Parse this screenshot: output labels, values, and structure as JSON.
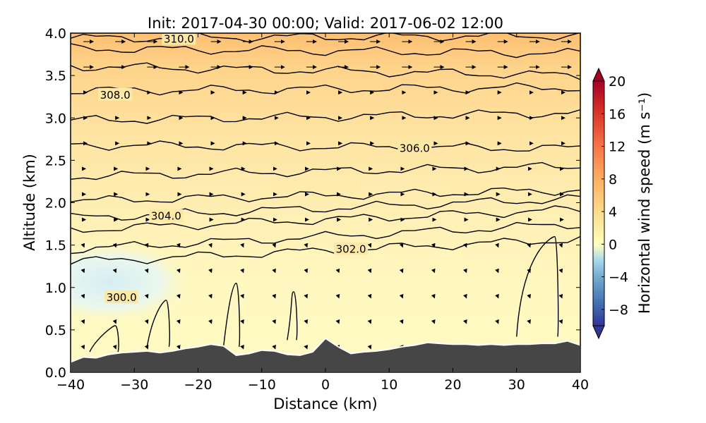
{
  "chart_data": {
    "type": "heatmap",
    "title": "Init: 2017-04-30 00:00; Valid: 2017-06-02 12:00",
    "xlabel": "Distance (km)",
    "ylabel": "Altitude (km)",
    "xlim": [
      -40,
      40
    ],
    "ylim": [
      0.0,
      4.0
    ],
    "x_ticks": [
      "−40",
      "−30",
      "−20",
      "−10",
      "0",
      "10",
      "20",
      "30",
      "40"
    ],
    "y_ticks": [
      "0.0",
      "0.5",
      "1.0",
      "1.5",
      "2.0",
      "2.5",
      "3.0",
      "3.5",
      "4.0"
    ],
    "colorbar": {
      "label": "Horizontal wind speed (m s⁻¹)",
      "min": -10,
      "max": 20,
      "ticks": [
        "−8",
        "−4",
        "0",
        "4",
        "8",
        "12",
        "16",
        "20"
      ],
      "tick_values": [
        -8,
        -4,
        0,
        4,
        8,
        12,
        16,
        20
      ],
      "colors": [
        "#313695",
        "#4575b4",
        "#74add1",
        "#abd9e9",
        "#e0f3f8",
        "#ffffbf",
        "#fee090",
        "#fdae61",
        "#f46d43",
        "#d73027",
        "#a50026"
      ]
    },
    "contour_labels": [
      {
        "text": "310.0",
        "x": -23,
        "y": 3.93
      },
      {
        "text": "308.0",
        "x": -33,
        "y": 3.27
      },
      {
        "text": "306.0",
        "x": 14,
        "y": 2.64
      },
      {
        "text": "304.0",
        "x": -25,
        "y": 1.84
      },
      {
        "text": "302.0",
        "x": 4,
        "y": 1.45
      },
      {
        "text": "300.0",
        "x": -32,
        "y": 0.88
      }
    ],
    "terrain": {
      "x": [
        -40,
        -38,
        -36,
        -34,
        -32,
        -30,
        -28,
        -26,
        -24,
        -22,
        -20,
        -18,
        -16,
        -14,
        -12,
        -10,
        -8,
        -6,
        -4,
        -2,
        0,
        2,
        4,
        6,
        8,
        10,
        12,
        14,
        16,
        18,
        20,
        22,
        24,
        26,
        28,
        30,
        32,
        34,
        36,
        38,
        40
      ],
      "y": [
        0.12,
        0.18,
        0.17,
        0.21,
        0.23,
        0.24,
        0.25,
        0.23,
        0.25,
        0.28,
        0.3,
        0.33,
        0.31,
        0.2,
        0.22,
        0.26,
        0.25,
        0.21,
        0.2,
        0.24,
        0.4,
        0.3,
        0.22,
        0.24,
        0.25,
        0.27,
        0.3,
        0.32,
        0.35,
        0.34,
        0.33,
        0.33,
        0.32,
        0.33,
        0.32,
        0.33,
        0.33,
        0.34,
        0.34,
        0.37,
        0.32
      ]
    },
    "isentropes": [
      {
        "name": "310.0",
        "y_left": 3.94,
        "y_right": 3.97
      },
      {
        "name": "",
        "y_left": 3.82,
        "y_right": 3.76
      },
      {
        "name": "",
        "y_left": 3.61,
        "y_right": 3.5
      },
      {
        "name": "308.0",
        "y_left": 3.32,
        "y_right": 3.36
      },
      {
        "name": "",
        "y_left": 2.97,
        "y_right": 3.06
      },
      {
        "name": "306.0",
        "y_left": 2.68,
        "y_right": 2.64
      },
      {
        "name": "",
        "y_left": 2.31,
        "y_right": 2.43
      },
      {
        "name": "",
        "y_left": 2.02,
        "y_right": 2.15
      },
      {
        "name": "304.0",
        "y_left": 1.82,
        "y_right": 2.05
      },
      {
        "name": "",
        "y_left": 1.68,
        "y_right": 1.92
      },
      {
        "name": "302.0",
        "y_left": 1.45,
        "y_right": 1.75
      },
      {
        "name": "",
        "y_left": 1.3,
        "y_right": 1.57
      }
    ]
  }
}
